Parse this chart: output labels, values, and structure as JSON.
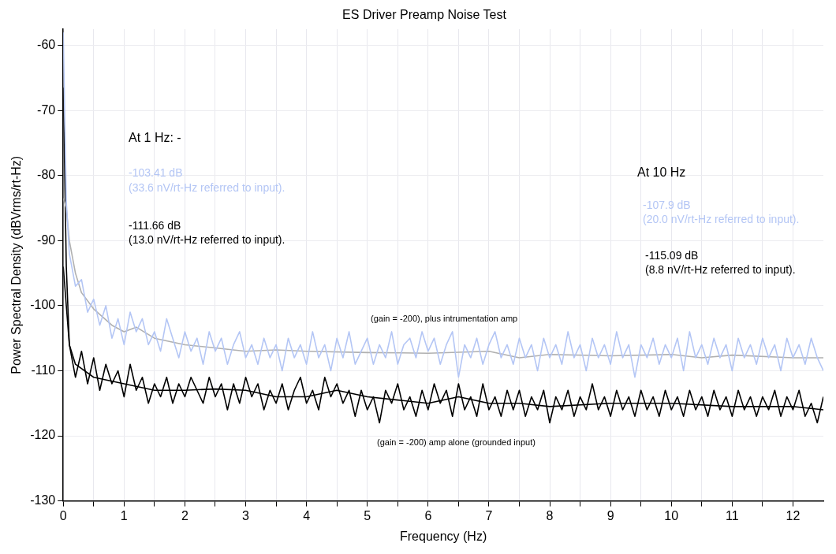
{
  "chart_data": {
    "type": "line",
    "title": "ES Driver Preamp Noise Test",
    "xlabel": "Frequency (Hz)",
    "ylabel": "Power Spectral Density (dBVrms/rt-Hz)",
    "xlim": [
      0,
      12.5
    ],
    "ylim": [
      -130,
      -57.5
    ],
    "xticks": [
      0,
      {
        "value": 0.5,
        "label": null
      },
      1,
      {
        "value": 1.5,
        "label": null
      },
      2,
      {
        "value": 2.5,
        "label": null
      },
      3,
      {
        "value": 3.5,
        "label": null
      },
      4,
      {
        "value": 4.5,
        "label": null
      },
      5,
      {
        "value": 5.5,
        "label": null
      },
      6,
      {
        "value": 6.5,
        "label": null
      },
      7,
      {
        "value": 7.5,
        "label": null
      },
      8,
      {
        "value": 8.5,
        "label": null
      },
      9,
      {
        "value": 9.5,
        "label": null
      },
      10,
      {
        "value": 10.5,
        "label": null
      },
      11,
      {
        "value": 11.5,
        "label": null
      },
      12
    ],
    "yticks": [
      -130,
      -120,
      -110,
      -100,
      -90,
      -80,
      -70,
      -60
    ],
    "grid": true,
    "legend": false,
    "marker": "none",
    "line_style": "solid",
    "x": [
      0,
      0.05,
      0.1,
      0.2,
      0.3,
      0.4,
      0.5,
      0.6,
      0.7,
      0.8,
      0.9,
      1.0,
      1.1,
      1.2,
      1.3,
      1.4,
      1.5,
      1.6,
      1.7,
      1.8,
      1.9,
      2.0,
      2.1,
      2.2,
      2.3,
      2.4,
      2.5,
      2.6,
      2.7,
      2.8,
      2.9,
      3.0,
      3.1,
      3.2,
      3.3,
      3.4,
      3.5,
      3.6,
      3.7,
      3.8,
      3.9,
      4.0,
      4.1,
      4.2,
      4.3,
      4.4,
      4.5,
      4.6,
      4.7,
      4.8,
      4.9,
      5.0,
      5.1,
      5.2,
      5.3,
      5.4,
      5.5,
      5.6,
      5.7,
      5.8,
      5.9,
      6.0,
      6.1,
      6.2,
      6.3,
      6.4,
      6.5,
      6.6,
      6.7,
      6.8,
      6.9,
      7.0,
      7.1,
      7.2,
      7.3,
      7.4,
      7.5,
      7.6,
      7.7,
      7.8,
      7.9,
      8.0,
      8.1,
      8.2,
      8.3,
      8.4,
      8.5,
      8.6,
      8.7,
      8.8,
      8.9,
      9.0,
      9.1,
      9.2,
      9.3,
      9.4,
      9.5,
      9.6,
      9.7,
      9.8,
      9.9,
      10.0,
      10.1,
      10.2,
      10.3,
      10.4,
      10.5,
      10.6,
      10.7,
      10.8,
      10.9,
      11.0,
      11.1,
      11.2,
      11.3,
      11.4,
      11.5,
      11.6,
      11.7,
      11.8,
      11.9,
      12.0,
      12.1,
      12.2,
      12.3,
      12.4,
      12.5
    ],
    "series": [
      {
        "color": "#b4c6f5",
        "values": [
          -58,
          -84,
          -92,
          -97,
          -96,
          -101,
          -99,
          -103,
          -100,
          -105,
          -102,
          -106,
          -101,
          -104,
          -102,
          -106,
          -104,
          -107,
          -102,
          -105,
          -108,
          -104,
          -107,
          -105,
          -109,
          -104,
          -107,
          -105,
          -109,
          -106,
          -104,
          -108,
          -106,
          -109,
          -105,
          -108,
          -106,
          -110,
          -105,
          -108,
          -106,
          -109,
          -104,
          -108,
          -106,
          -110,
          -105,
          -108,
          -104,
          -109,
          -107,
          -105,
          -109,
          -106,
          -108,
          -104,
          -109,
          -106,
          -105,
          -108,
          -104,
          -107,
          -105,
          -109,
          -106,
          -104,
          -111,
          -106,
          -108,
          -105,
          -109,
          -106,
          -104,
          -108,
          -106,
          -109,
          -105,
          -108,
          -106,
          -110,
          -105,
          -108,
          -106,
          -109,
          -104,
          -108,
          -106,
          -110,
          -105,
          -108,
          -106,
          -109,
          -104,
          -108,
          -106,
          -111,
          -106,
          -108,
          -105,
          -109,
          -106,
          -108,
          -105,
          -110,
          -104,
          -108,
          -106,
          -109,
          -105,
          -108,
          -106,
          -110,
          -105,
          -108,
          -106,
          -109,
          -105,
          -108,
          -106,
          -110,
          -105,
          -108,
          -106,
          -109,
          -105,
          -108,
          -110
        ]
      },
      {
        "color": "#b0b0b0",
        "x": [
          0,
          0.05,
          0.1,
          0.2,
          0.3,
          0.5,
          0.8,
          1.0,
          1.2,
          1.5,
          2,
          2.5,
          3,
          3.5,
          4,
          5,
          6,
          7,
          7.5,
          8,
          9,
          10,
          10.5,
          11,
          12,
          12.5
        ],
        "values": [
          -83.5,
          -85,
          -90,
          -95,
          -98,
          -100.5,
          -103,
          -104,
          -103.3,
          -105,
          -106,
          -106.5,
          -107,
          -106.8,
          -107,
          -107.2,
          -107.3,
          -107,
          -108,
          -107.5,
          -107.7,
          -107.5,
          -108,
          -107.6,
          -108,
          -108
        ]
      },
      {
        "color": "#000000",
        "values": [
          -66.5,
          -94,
          -106,
          -111,
          -107,
          -112,
          -108,
          -113,
          -109,
          -112,
          -110,
          -114,
          -109,
          -113,
          -111,
          -115,
          -112,
          -114,
          -111,
          -115,
          -112,
          -114,
          -111,
          -113,
          -115,
          -111,
          -114,
          -112,
          -116,
          -112,
          -115,
          -111,
          -114,
          -112,
          -116,
          -113,
          -115,
          -112,
          -116,
          -113,
          -111,
          -115,
          -113,
          -116,
          -111,
          -114,
          -112,
          -115,
          -113,
          -117,
          -113,
          -116,
          -114,
          -118,
          -113,
          -115,
          -112,
          -116,
          -114,
          -117,
          -113,
          -116,
          -112,
          -115,
          -113,
          -117,
          -112,
          -116,
          -114,
          -117,
          -112,
          -116,
          -114,
          -117,
          -113,
          -116,
          -113,
          -117,
          -114,
          -116,
          -113,
          -118,
          -114,
          -116,
          -113,
          -117,
          -114,
          -116,
          -112,
          -116,
          -114,
          -117,
          -113,
          -116,
          -114,
          -117,
          -113,
          -116,
          -114,
          -117,
          -113,
          -116,
          -114,
          -117,
          -113,
          -116,
          -114,
          -117,
          -113,
          -116,
          -114,
          -117,
          -113,
          -116,
          -114,
          -117,
          -114,
          -116,
          -113,
          -117,
          -114,
          -116,
          -113,
          -117,
          -115,
          -118,
          -114
        ]
      },
      {
        "color": "#000000",
        "x": [
          0,
          0.05,
          0.1,
          0.2,
          0.5,
          1,
          1.5,
          2,
          2.5,
          3,
          3.5,
          4,
          4.5,
          5,
          5.5,
          6,
          6.5,
          7,
          7.5,
          8,
          9,
          10,
          11,
          12,
          12.5
        ],
        "values": [
          -94,
          -100,
          -106,
          -109,
          -111,
          -112,
          -113,
          -113,
          -112.8,
          -113,
          -114,
          -114,
          -113,
          -114,
          -114.5,
          -115,
          -114,
          -115,
          -115,
          -115.5,
          -115,
          -115,
          -115.5,
          -115.5,
          -116
        ]
      }
    ],
    "annotations": [
      "At 1 Hz: -",
      "-103.41 dB",
      "(33.6 nV/rt-Hz referred to input).",
      "-111.66 dB",
      "(13.0 nV/rt-Hz referred to input).",
      "At 10 Hz",
      "-107.9 dB",
      "(20.0 nV/rt-Hz referred to input).",
      "-115.09 dB",
      "(8.8 nV/rt-Hz referred to input).",
      "(gain = -200), plus intrumentation amp",
      "(gain = -200) amp alone (grounded input)"
    ]
  }
}
